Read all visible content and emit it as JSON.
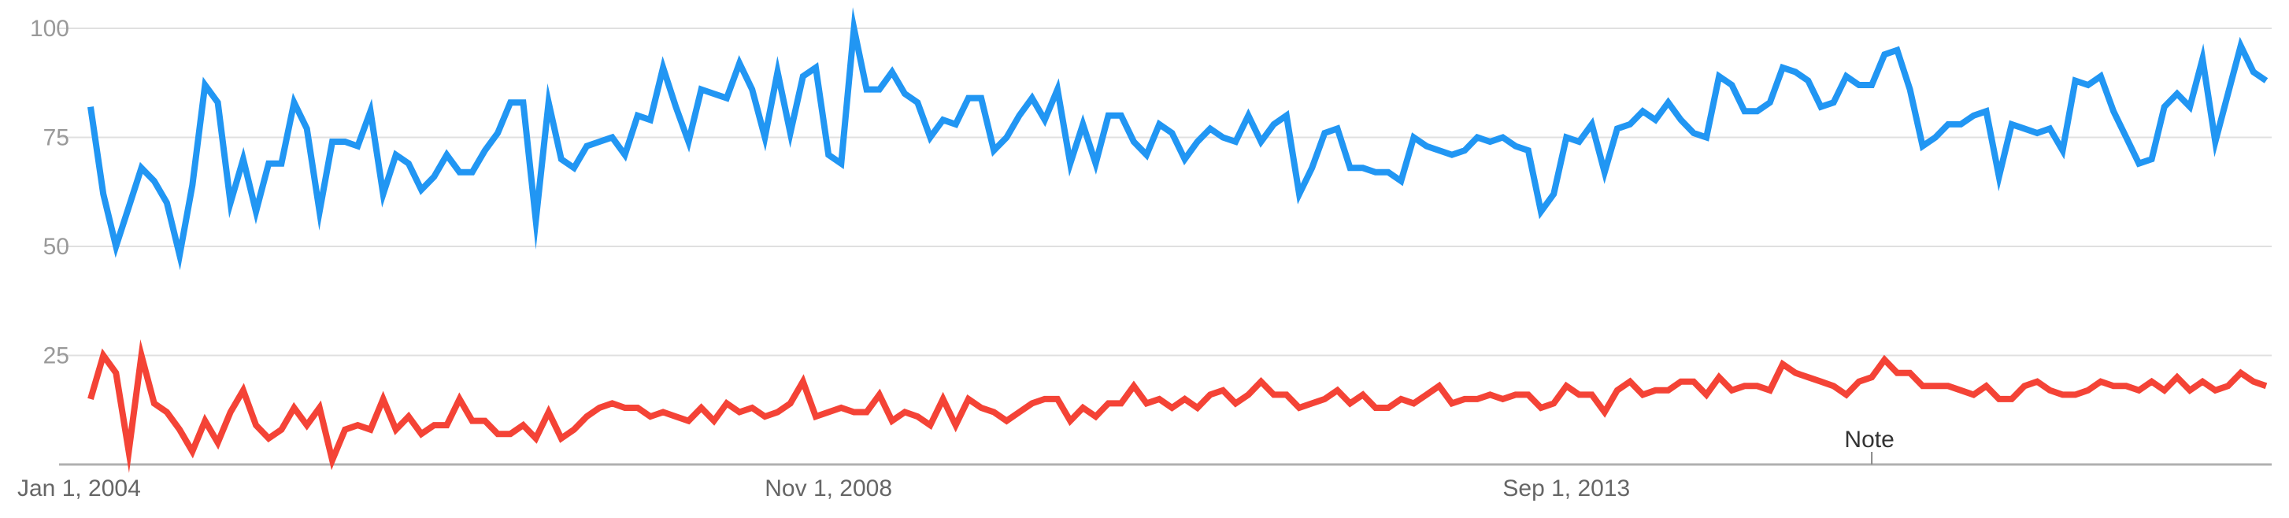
{
  "chart_data": {
    "type": "line",
    "y_ticks": [
      25,
      50,
      75,
      100
    ],
    "ylim": [
      0,
      100
    ],
    "x_ticks": [
      "Jan 1, 2004",
      "Nov 1, 2008",
      "Sep 1, 2013"
    ],
    "x_start": "2004-01",
    "annotation": {
      "label": "Note",
      "x": "2015-09"
    },
    "grid": true,
    "series": [
      {
        "color": "#2196f3",
        "values": [
          82,
          62,
          50,
          59,
          68,
          65,
          60,
          48,
          64,
          87,
          83,
          60,
          70,
          58,
          69,
          69,
          83,
          77,
          58,
          74,
          74,
          73,
          81,
          62,
          71,
          69,
          63,
          66,
          71,
          67,
          67,
          72,
          76,
          83,
          83,
          56,
          83,
          70,
          68,
          73,
          74,
          75,
          71,
          80,
          79,
          91,
          82,
          74,
          86,
          85,
          84,
          92,
          86,
          75,
          90,
          76,
          89,
          91,
          71,
          69,
          100,
          86,
          86,
          90,
          85,
          83,
          75,
          79,
          78,
          84,
          84,
          72,
          75,
          80,
          84,
          79,
          86,
          69,
          78,
          69,
          80,
          80,
          74,
          71,
          78,
          76,
          70,
          74,
          77,
          75,
          74,
          80,
          74,
          78,
          80,
          62,
          68,
          76,
          77,
          68,
          68,
          67,
          67,
          65,
          75,
          73,
          72,
          71,
          72,
          75,
          74,
          75,
          73,
          72,
          58,
          62,
          75,
          74,
          78,
          67,
          77,
          78,
          81,
          79,
          83,
          79,
          76,
          75,
          89,
          87,
          81,
          81,
          83,
          91,
          90,
          88,
          82,
          83,
          89,
          87,
          87,
          94,
          95,
          86,
          73,
          75,
          78,
          78,
          80,
          81,
          66,
          78,
          77,
          76,
          77,
          72,
          88,
          87,
          89,
          81,
          75,
          69,
          70,
          82,
          85,
          82,
          93,
          74,
          85,
          96,
          90,
          88
        ]
      },
      {
        "color": "#f44336",
        "values": [
          15,
          25,
          21,
          3,
          25,
          14,
          12,
          8,
          3,
          10,
          5,
          12,
          17,
          9,
          6,
          8,
          13,
          9,
          13,
          1,
          8,
          9,
          8,
          15,
          8,
          11,
          7,
          9,
          9,
          15,
          10,
          10,
          7,
          7,
          9,
          6,
          12,
          6,
          8,
          11,
          13,
          14,
          13,
          13,
          11,
          12,
          11,
          10,
          13,
          10,
          14,
          12,
          13,
          11,
          12,
          14,
          19,
          11,
          12,
          13,
          12,
          12,
          16,
          10,
          12,
          11,
          9,
          15,
          9,
          15,
          13,
          12,
          10,
          12,
          14,
          15,
          15,
          10,
          13,
          11,
          14,
          14,
          18,
          14,
          15,
          13,
          15,
          13,
          16,
          17,
          14,
          16,
          19,
          16,
          16,
          13,
          14,
          15,
          17,
          14,
          16,
          13,
          13,
          15,
          14,
          16,
          18,
          14,
          15,
          15,
          16,
          15,
          16,
          16,
          13,
          14,
          18,
          16,
          16,
          12,
          17,
          19,
          16,
          17,
          17,
          19,
          19,
          16,
          20,
          17,
          18,
          18,
          17,
          23,
          21,
          20,
          19,
          18,
          16,
          19,
          20,
          24,
          21,
          21,
          18,
          18,
          18,
          17,
          16,
          18,
          15,
          15,
          18,
          19,
          17,
          16,
          16,
          17,
          19,
          18,
          18,
          17,
          19,
          17,
          20,
          17,
          19,
          17,
          18,
          21,
          19,
          18
        ]
      }
    ]
  }
}
